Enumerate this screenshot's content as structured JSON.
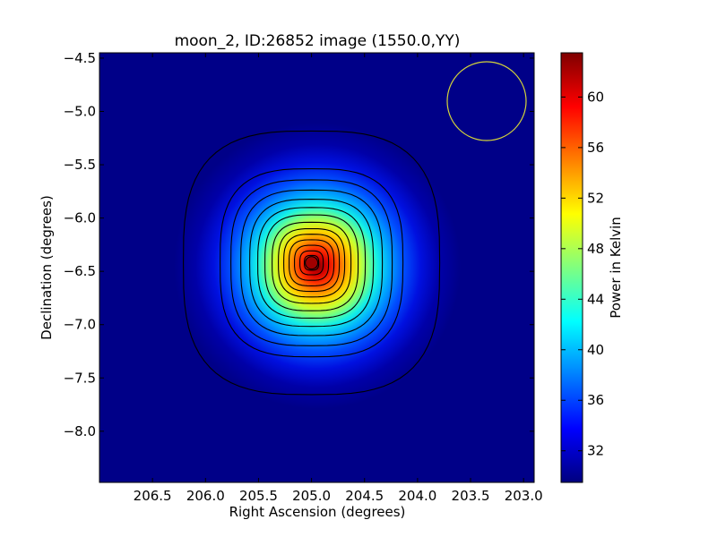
{
  "chart_data": {
    "type": "heatmap",
    "title": "moon_2, ID:26852 image (1550.0,YY)",
    "xlabel": "Right Ascension (degrees)",
    "ylabel": "Declination (degrees)",
    "colorbar_label": "Power in Kelvin",
    "colormap": "jet",
    "x_axis_direction": "decreasing",
    "xlim": [
      207.0,
      202.9
    ],
    "ylim": [
      -8.48,
      -4.45
    ],
    "x_ticks": [
      206.5,
      206.0,
      205.5,
      205.0,
      204.5,
      204.0,
      203.5,
      203.0
    ],
    "x_tick_labels": [
      "206.5",
      "206.0",
      "205.5",
      "205.0",
      "204.5",
      "204.0",
      "203.5",
      "203.0"
    ],
    "y_ticks": [
      -4.5,
      -5.0,
      -5.5,
      -6.0,
      -6.5,
      -7.0,
      -7.5,
      -8.0
    ],
    "y_tick_labels": [
      "−4.5",
      "−5.0",
      "−5.5",
      "−6.0",
      "−6.5",
      "−7.0",
      "−7.5",
      "−8.0"
    ],
    "colorbar_range": [
      29.5,
      63.5
    ],
    "colorbar_ticks": [
      32,
      36,
      40,
      44,
      48,
      52,
      56,
      60
    ],
    "colorbar_tick_labels": [
      "32",
      "36",
      "40",
      "44",
      "48",
      "52",
      "56",
      "60"
    ],
    "peak": {
      "ra": 205.0,
      "dec": -6.42,
      "value": 63.5
    },
    "background_value": 29.5,
    "contours": "black, around the peak",
    "beam_circle": {
      "ra": 203.35,
      "dec": -4.88,
      "radius_deg": 0.37,
      "color": "#d4d43a"
    }
  }
}
